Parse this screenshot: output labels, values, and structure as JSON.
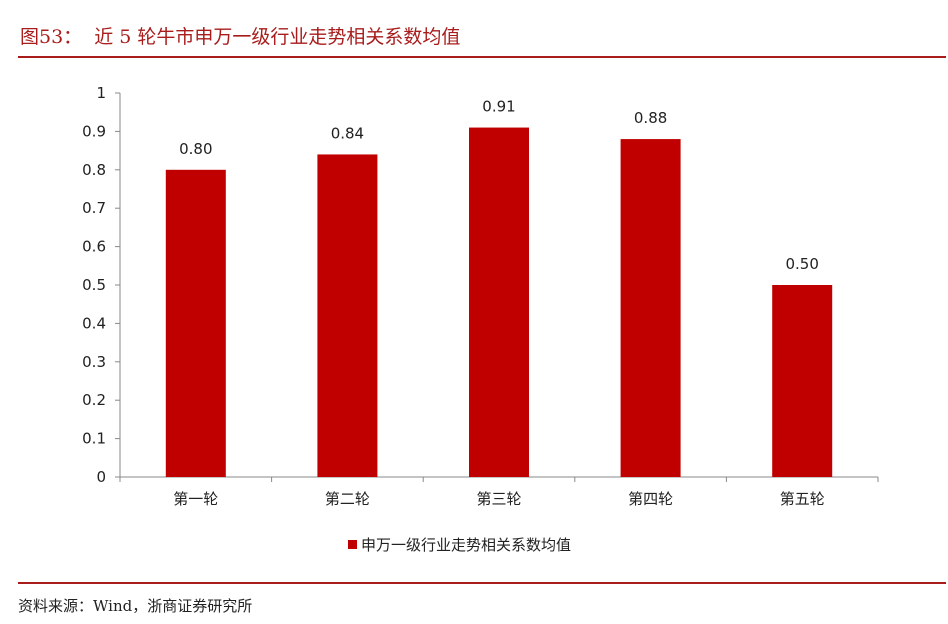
{
  "title": "图53：  近 5 轮牛市申万一级行业走势相关系数均值",
  "source": "资料来源：Wind，浙商证券研究所",
  "colors": {
    "bar": "#C00000",
    "accent": "#A81C1C"
  },
  "chart_data": {
    "type": "bar",
    "categories": [
      "第一轮",
      "第二轮",
      "第三轮",
      "第四轮",
      "第五轮"
    ],
    "series": [
      {
        "name": "申万一级行业走势相关系数均值",
        "values": [
          0.8,
          0.84,
          0.91,
          0.88,
          0.5
        ]
      }
    ],
    "data_labels": [
      "0.80",
      "0.84",
      "0.91",
      "0.88",
      "0.50"
    ],
    "yticks": [
      "0",
      "0.1",
      "0.2",
      "0.3",
      "0.4",
      "0.5",
      "0.6",
      "0.7",
      "0.8",
      "0.9",
      "1"
    ],
    "ylim": [
      0,
      1
    ],
    "grid": false,
    "legend_position": "bottom"
  }
}
